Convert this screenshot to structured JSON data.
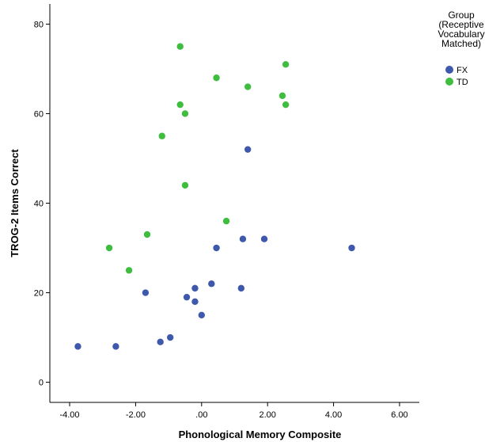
{
  "chart_data": {
    "type": "scatter",
    "xlabel": "Phonological Memory Composite",
    "ylabel": "TROG-2 Items Correct",
    "xlim": [
      -4.6,
      6.6
    ],
    "ylim": [
      -4.5,
      84.5
    ],
    "xticks": [
      -4,
      -2,
      0,
      2,
      4,
      6
    ],
    "xtick_labels": [
      "-4.00",
      "-2.00",
      ".00",
      "2.00",
      "4.00",
      "6.00"
    ],
    "yticks": [
      0,
      20,
      40,
      60,
      80
    ],
    "ytick_labels": [
      "0",
      "20",
      "40",
      "60",
      "80"
    ],
    "grid": false,
    "legend": {
      "placement": "top-right",
      "title_lines": [
        "Group",
        "(Receptive",
        "Vocabulary",
        "Matched)"
      ]
    },
    "series": [
      {
        "name": "FX",
        "color": "#3e58ac",
        "points": [
          [
            -3.75,
            8
          ],
          [
            -2.6,
            8
          ],
          [
            -1.25,
            9
          ],
          [
            -0.95,
            10
          ],
          [
            0.0,
            15
          ],
          [
            -0.2,
            18
          ],
          [
            -0.45,
            19
          ],
          [
            -0.2,
            21
          ],
          [
            0.3,
            22
          ],
          [
            1.2,
            21
          ],
          [
            -1.7,
            20
          ],
          [
            0.45,
            30
          ],
          [
            1.25,
            32
          ],
          [
            1.9,
            32
          ],
          [
            4.55,
            30
          ],
          [
            1.4,
            52
          ]
        ]
      },
      {
        "name": "TD",
        "color": "#3fbd3f",
        "points": [
          [
            -2.8,
            30
          ],
          [
            -2.2,
            25
          ],
          [
            -1.65,
            33
          ],
          [
            -0.5,
            44
          ],
          [
            0.75,
            36
          ],
          [
            -1.2,
            55
          ],
          [
            -0.65,
            62
          ],
          [
            -0.5,
            60
          ],
          [
            -0.65,
            75
          ],
          [
            0.45,
            68
          ],
          [
            1.4,
            66
          ],
          [
            2.45,
            64
          ],
          [
            2.55,
            62
          ],
          [
            2.55,
            71
          ]
        ]
      }
    ]
  }
}
